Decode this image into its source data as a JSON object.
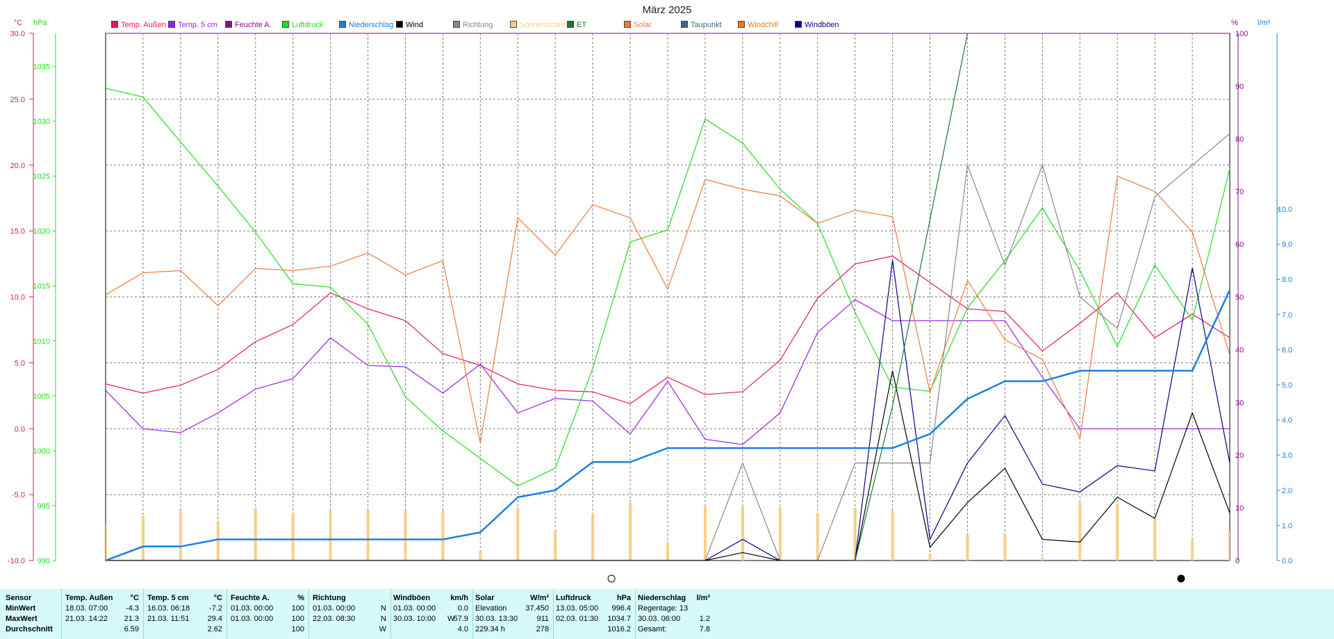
{
  "chart_data": {
    "type": "line",
    "title": "März 2025",
    "axes": {
      "left1_unit": "°C",
      "left2_unit": "hPa",
      "right1_unit": "%",
      "right2_unit": "l/m²",
      "temp_ticks": [
        "30.0",
        "25.0",
        "20.0",
        "15.0",
        "10.0",
        "5.0",
        "0.0",
        "-5.0",
        "-10.0"
      ],
      "pressure_ticks": [
        "1035",
        "1030",
        "1025",
        "1020",
        "1015",
        "1010",
        "1005",
        "1000",
        "995",
        "990"
      ],
      "percent_ticks": [
        "100",
        "90",
        "80",
        "70",
        "60",
        "50",
        "40",
        "30",
        "20",
        "10",
        "0"
      ],
      "rain_ticks": [
        "10.0",
        "9.0",
        "8.0",
        "7.0",
        "6.0",
        "5.0",
        "4.0",
        "3.0",
        "2.0",
        "1.0",
        "0.0"
      ],
      "temp_range": [
        -10,
        30
      ],
      "pressure_range": [
        990,
        1038
      ],
      "percent_range": [
        0,
        100
      ],
      "rain_range": [
        0,
        15
      ],
      "grid": true
    },
    "days": 31,
    "legend": [
      {
        "name": "Temp. Außen",
        "color": "#e8135f"
      },
      {
        "name": "Temp. 5 cm",
        "color": "#9b1ee8"
      },
      {
        "name": "Feuchte A.",
        "color": "#8a0a8a"
      },
      {
        "name": "Luftdruck",
        "color": "#22dd22"
      },
      {
        "name": "Niederschlag",
        "color": "#1a7fe8"
      },
      {
        "name": "Wind",
        "color": "#000000"
      },
      {
        "name": "Richtung",
        "color": "#888888"
      },
      {
        "name": "Sonnenschein",
        "color": "#f7cf86"
      },
      {
        "name": "ET",
        "color": "#1a7a2a"
      },
      {
        "name": "Solar",
        "color": "#f07a3a"
      },
      {
        "name": "Taupunkt",
        "color": "#3a6a7a"
      },
      {
        "name": "Windchill",
        "color": "#f07a1a"
      },
      {
        "name": "Windböen",
        "color": "#000088"
      }
    ],
    "series": [
      {
        "name": "Temp. Außen",
        "axis": "temp",
        "color": "#e8135f",
        "values": [
          3.4,
          2.7,
          3.3,
          4.5,
          6.6,
          7.9,
          10.3,
          9.1,
          8.2,
          5.7,
          4.8,
          3.4,
          2.9,
          2.8,
          1.9,
          3.9,
          2.6,
          2.8,
          5.2,
          9.9,
          12.5,
          13.1,
          11.1,
          9.1,
          8.9,
          5.9,
          8.0,
          10.3,
          6.9,
          8.7,
          6.9
        ]
      },
      {
        "name": "Temp. 5 cm",
        "axis": "temp",
        "color": "#9b1ee8",
        "values": [
          2.9,
          0.0,
          -0.3,
          1.2,
          3.0,
          3.8,
          6.9,
          4.8,
          4.7,
          2.7,
          4.9,
          1.2,
          2.3,
          2.1,
          -0.4,
          3.6,
          -0.8,
          -1.2,
          1.2,
          7.3,
          9.8,
          8.2,
          8.2,
          8.2,
          8.2,
          3.9,
          0.0,
          0.0,
          0.0,
          0.0,
          0.0
        ]
      },
      {
        "name": "Luftdruck",
        "axis": "pressure",
        "color": "#22dd22",
        "values": [
          1033.0,
          1032.2,
          1028.1,
          1024.1,
          1019.9,
          1015.2,
          1014.9,
          1011.5,
          1004.9,
          1001.8,
          999.3,
          996.8,
          998.4,
          1007.5,
          1019.0,
          1020.1,
          1030.2,
          1028.0,
          1023.8,
          1020.7,
          1012.6,
          1005.8,
          1005.4,
          1013.0,
          1017.3,
          1022.1,
          1016.4,
          1009.5,
          1016.9,
          1011.9,
          1025.7
        ]
      },
      {
        "name": "Solar",
        "axis": "pressure",
        "color": "#f07a3a",
        "values": [
          1014.2,
          1016.2,
          1016.4,
          1013.2,
          1016.6,
          1016.4,
          1016.8,
          1018.0,
          1016.0,
          1017.3,
          1000.7,
          1021.2,
          1017.8,
          1022.4,
          1021.2,
          1014.7,
          1024.7,
          1023.8,
          1023.2,
          1020.7,
          1021.9,
          1021.3,
          1005.3,
          1015.5,
          1010.1,
          1008.3,
          1001.1,
          1025.0,
          1023.6,
          1019.9,
          1008.7
        ]
      },
      {
        "name": "Richtung",
        "axis": "percent",
        "color": "#888888",
        "values": [
          0,
          0,
          0,
          0,
          0,
          0,
          0,
          0,
          0,
          0,
          0,
          0,
          0,
          0,
          0,
          0,
          0,
          18.5,
          0,
          0,
          18.5,
          18.5,
          18.5,
          75,
          56,
          75,
          50,
          44,
          69,
          75,
          81
        ]
      },
      {
        "name": "Windböen",
        "axis": "percent",
        "color": "#000088",
        "values": [
          0,
          0,
          0,
          0,
          0,
          0,
          0,
          0,
          0,
          0,
          0,
          0,
          0,
          0,
          0,
          0,
          0,
          4.0,
          0,
          0,
          0,
          57,
          4,
          18.5,
          27.5,
          14.5,
          13,
          18,
          17,
          55.5,
          18.5
        ]
      },
      {
        "name": "Wind",
        "axis": "percent",
        "color": "#000000",
        "values": [
          0,
          0,
          0,
          0,
          0,
          0,
          0,
          0,
          0,
          0,
          0,
          0,
          0,
          0,
          0,
          0,
          0,
          1.5,
          0,
          0,
          0,
          36,
          2.5,
          11,
          17.5,
          4,
          3.5,
          12,
          8,
          28,
          9
        ]
      },
      {
        "name": "Niederschlag",
        "axis": "rain",
        "color": "#1a7fe8",
        "values": [
          0.0,
          0.4,
          0.4,
          0.6,
          0.6,
          0.6,
          0.6,
          0.6,
          0.6,
          0.6,
          0.8,
          1.8,
          2.0,
          2.8,
          2.8,
          3.2,
          3.2,
          3.2,
          3.2,
          3.2,
          3.2,
          3.2,
          3.6,
          4.6,
          5.1,
          5.1,
          5.4,
          5.4,
          5.4,
          5.4,
          7.7
        ]
      },
      {
        "name": "ET",
        "axis": "rain",
        "color": "#1a7a2a",
        "values": [
          null,
          null,
          null,
          null,
          null,
          null,
          null,
          null,
          null,
          null,
          null,
          null,
          null,
          null,
          null,
          null,
          null,
          null,
          null,
          null,
          0.0,
          4.4,
          9.7,
          15.0,
          null,
          null,
          null,
          null,
          null,
          null,
          null
        ]
      },
      {
        "name": "Sonnenschein",
        "axis": "percent",
        "color": "#f7cf86",
        "type": "bar",
        "values": [
          7,
          8.5,
          9.5,
          7.5,
          10,
          9,
          9.5,
          9.5,
          9.5,
          9.5,
          1.8,
          10,
          5.8,
          8.9,
          11,
          3.1,
          10.2,
          10.3,
          10.1,
          9,
          10,
          9.5,
          1.3,
          4.9,
          5.1,
          0.6,
          11,
          10.8,
          8,
          3.9,
          5.6
        ]
      }
    ]
  },
  "moon_icons": {
    "new_moon": "new-moon-icon",
    "full_moon": "full-moon-icon"
  },
  "stats": {
    "headers": {
      "sensor": "Sensor",
      "temp_aussen": "Temp. Außen",
      "temp_aussen_unit": "°C",
      "temp_5cm": "Temp. 5 cm",
      "temp_5cm_unit": "°C",
      "feuchte": "Feuchte A.",
      "feuchte_unit": "%",
      "richtung": "Richtung",
      "windboeen": "Windböen",
      "windboeen_unit": "km/h",
      "solar": "Solar",
      "solar_unit": "W/m²",
      "luftdruck": "Luftdruck",
      "luftdruck_unit": "hPa",
      "niederschlag": "Niederschlag",
      "niederschlag_unit": "l/m²"
    },
    "row_labels": {
      "min": "MinWert",
      "max": "MaxWert",
      "avg": "Durchschnitt"
    },
    "temp_aussen": {
      "min_time": "18.03.  07:00",
      "min_val": "-4.3",
      "max_time": "21.03.  14:22",
      "max_val": "21.3",
      "avg": "6.59"
    },
    "temp_5cm": {
      "min_time": "16.03.  06:18",
      "min_val": "-7.2",
      "max_time": "21.03.  11:51",
      "max_val": "29.4",
      "avg": "2.62"
    },
    "feuchte": {
      "min_time": "01.03.  00:00",
      "min_val": "100",
      "max_time": "01.03.  00:00",
      "max_val": "100",
      "avg": "100"
    },
    "richtung": {
      "min_time": "01.03.  00:00",
      "min_val": "N",
      "max_time": "22.03.  08:30",
      "max_val": "N",
      "avg": "W"
    },
    "windboeen": {
      "min_time": "01.03.  00:00",
      "min_val": "0.0",
      "max_time": "30.03.  10:00",
      "max_dir": "W",
      "max_val": "57.9",
      "avg": "4.0"
    },
    "solar": {
      "min_label": "Elevation",
      "min_val": "37.450",
      "max_time": "30.03.  13:30",
      "max_val": "911",
      "avg_time": "229.34 h",
      "avg": "278"
    },
    "luftdruck": {
      "min_time": "13.03.  05:00",
      "min_val": "996.4",
      "max_time": "02.03.  01:30",
      "max_val": "1034.7",
      "avg": "1016.2"
    },
    "niederschlag": {
      "min_label": "Regentage: 13",
      "max_time": "30.03.  06:00",
      "max_val": "1.2",
      "avg_label": "Gesamt:",
      "avg_val": "7.8"
    }
  }
}
